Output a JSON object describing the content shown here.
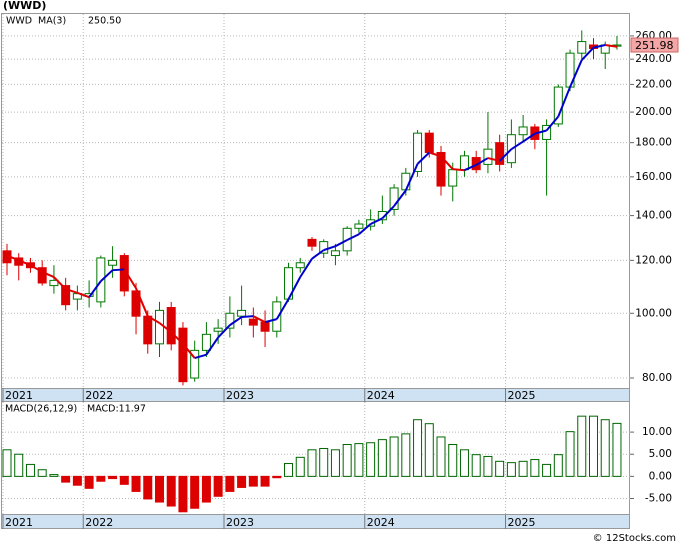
{
  "title": "(WWD)",
  "footer": "© 12Stocks.com",
  "chart_data": [
    {
      "type": "candlestick",
      "categories": [
        null,
        null,
        null,
        null,
        null,
        null,
        null,
        null,
        null,
        null,
        null,
        null,
        null,
        null,
        null,
        null,
        null,
        null,
        null,
        null,
        null,
        null,
        null,
        null,
        null,
        null,
        null,
        null,
        null,
        null,
        null,
        null,
        null,
        null,
        null,
        null,
        null,
        null,
        null,
        null,
        null,
        null,
        null,
        null,
        null,
        null,
        null,
        null,
        null,
        null,
        null,
        null,
        null
      ],
      "series": [
        {
          "name": "WWD",
          "color": "#007700",
          "up_color": "#007700",
          "down_color": "#dd0000",
          "open": [
            124,
            121,
            119,
            117,
            110,
            110,
            105,
            106,
            104,
            118,
            122,
            108,
            99,
            90,
            102,
            95,
            80,
            88,
            94,
            95,
            99,
            98,
            97,
            94,
            105,
            117,
            129,
            123,
            122,
            124,
            134,
            135,
            138,
            143,
            153,
            163,
            186,
            174,
            155,
            164,
            171,
            167,
            180,
            168,
            185,
            190,
            182,
            192,
            218,
            245,
            252,
            245,
            251
          ],
          "high": [
            127,
            123,
            121,
            120,
            118,
            113,
            110,
            112,
            122,
            126,
            123,
            111,
            101,
            104,
            104,
            97,
            91,
            97,
            98,
            106,
            110,
            102,
            101,
            106,
            119,
            121,
            130,
            129,
            127,
            135,
            138,
            143,
            150,
            156,
            165,
            188,
            188,
            178,
            168,
            175,
            175,
            200,
            185,
            195,
            198,
            192,
            195,
            220,
            248,
            265,
            258,
            255,
            260
          ],
          "low": [
            114,
            112,
            115,
            110,
            107,
            101,
            101,
            102,
            102,
            113,
            106,
            93,
            87,
            86,
            88,
            78,
            79,
            86,
            90,
            92,
            96,
            92,
            89,
            92,
            104,
            115,
            124,
            121,
            118,
            122,
            132,
            133,
            136,
            140,
            150,
            160,
            171,
            150,
            147,
            160,
            162,
            162,
            163,
            165,
            180,
            176,
            150,
            190,
            215,
            240,
            240,
            232,
            248
          ],
          "close": [
            119,
            118,
            117,
            111,
            112,
            103,
            107,
            107,
            121,
            120,
            108,
            99,
            90,
            101,
            90,
            79,
            88,
            93,
            95,
            100,
            101,
            96,
            94,
            104,
            117,
            119,
            126,
            128,
            124,
            134,
            136,
            138,
            142,
            154,
            162,
            186,
            174,
            155,
            164,
            172,
            164,
            176,
            167,
            185,
            190,
            182,
            191,
            218,
            245,
            255,
            249,
            252,
            251.98
          ],
          "value_labels": [
            null,
            null,
            null,
            null,
            null,
            null,
            null,
            null,
            null,
            null,
            null,
            null,
            null,
            null,
            null,
            null,
            null,
            null,
            null,
            null,
            null,
            null,
            null,
            null,
            null,
            null,
            null,
            null,
            null,
            null,
            null,
            null,
            null,
            null,
            null,
            null,
            null,
            null,
            null,
            null,
            null,
            null,
            null,
            null,
            null,
            null,
            null,
            null,
            null,
            null,
            null,
            null,
            "251.98"
          ]
        },
        {
          "name": "MA(3)",
          "color": "#0000cc",
          "up_color": "#0000cc",
          "down_color": "#e00000",
          "values": [
            122,
            120,
            118,
            115.3,
            113.3,
            108.7,
            107.3,
            105.7,
            111.7,
            116,
            116.3,
            109,
            99,
            96.7,
            93.7,
            90,
            85.7,
            86.7,
            92,
            96,
            98.7,
            99,
            97,
            98,
            105,
            113.3,
            120.7,
            124.3,
            126,
            128.7,
            131.3,
            136,
            138.7,
            144.7,
            152.7,
            167.3,
            174,
            171.7,
            164.3,
            163.7,
            166.7,
            170.7,
            169,
            176,
            180.7,
            185.7,
            187.7,
            197,
            218,
            239.3,
            249.7,
            252,
            250.5
          ],
          "value_labels": [
            null,
            null,
            null,
            null,
            null,
            null,
            null,
            null,
            null,
            null,
            null,
            null,
            null,
            null,
            null,
            null,
            null,
            null,
            null,
            null,
            null,
            null,
            null,
            null,
            null,
            null,
            null,
            null,
            null,
            null,
            null,
            null,
            null,
            null,
            null,
            null,
            null,
            null,
            null,
            null,
            null,
            null,
            null,
            null,
            null,
            null,
            null,
            null,
            null,
            null,
            null,
            null,
            "250.50"
          ]
        }
      ],
      "log_scale": true,
      "ylim": [
        77.3,
        280.4
      ],
      "yticks": [
        {
          "value": 80,
          "label": "80.00"
        },
        {
          "value": 100,
          "label": "100.00"
        },
        {
          "value": 120,
          "label": "120.00"
        },
        {
          "value": 140,
          "label": "140.00"
        },
        {
          "value": 160,
          "label": "160.00"
        },
        {
          "value": 180,
          "label": "180.00"
        },
        {
          "value": 200,
          "label": "200.00"
        },
        {
          "value": 220,
          "label": "220.00"
        },
        {
          "value": 240,
          "label": "240.00"
        },
        {
          "value": 260,
          "label": "260.00"
        }
      ],
      "xticks": [
        {
          "value": -0.5,
          "label": "2021"
        },
        {
          "value": 6.5,
          "label": "2022"
        },
        {
          "value": 18.5,
          "label": "2023"
        },
        {
          "value": 30.5,
          "label": "2024"
        },
        {
          "value": 42.5,
          "label": "2025"
        }
      ],
      "grid": true
    },
    {
      "type": "bar",
      "categories": [
        null,
        null,
        null,
        null,
        null,
        null,
        null,
        null,
        null,
        null,
        null,
        null,
        null,
        null,
        null,
        null,
        null,
        null,
        null,
        null,
        null,
        null,
        null,
        null,
        null,
        null,
        null,
        null,
        null,
        null,
        null,
        null,
        null,
        null,
        null,
        null,
        null,
        null,
        null,
        null,
        null,
        null,
        null,
        null,
        null,
        null,
        null,
        null,
        null,
        null,
        null,
        null,
        null
      ],
      "series": [
        {
          "name": "MACD(26,12,9)",
          "color": "#006600",
          "up_color": "#006600",
          "down_color": "#dd0000",
          "values": [
            6.0,
            5.0,
            2.7,
            1.5,
            0.4,
            -1.3,
            -2.0,
            -2.7,
            -1.1,
            -0.5,
            -1.8,
            -3.4,
            -5.1,
            -5.8,
            -6.7,
            -8.0,
            -7.2,
            -5.8,
            -4.5,
            -3.4,
            -2.5,
            -2.2,
            -2.2,
            -0.3,
            2.9,
            4.3,
            6.0,
            6.3,
            6.0,
            7.2,
            7.4,
            7.6,
            8.3,
            8.9,
            9.6,
            12.8,
            11.9,
            8.9,
            7.2,
            6.0,
            4.9,
            4.5,
            3.4,
            3.1,
            3.4,
            3.8,
            2.7,
            4.9,
            10.1,
            13.6,
            13.6,
            12.8,
            11.97
          ],
          "value_labels": [
            null,
            null,
            null,
            null,
            null,
            null,
            null,
            null,
            null,
            null,
            null,
            null,
            null,
            null,
            null,
            null,
            null,
            null,
            null,
            null,
            null,
            null,
            null,
            null,
            null,
            null,
            null,
            null,
            null,
            null,
            null,
            null,
            null,
            null,
            null,
            null,
            null,
            null,
            null,
            null,
            null,
            null,
            null,
            null,
            null,
            null,
            null,
            null,
            null,
            null,
            null,
            null,
            "MACD:11.97"
          ]
        }
      ],
      "ylim": [
        -8.5,
        16.8
      ],
      "yticks": [
        {
          "value": -5,
          "label": "-5.00"
        },
        {
          "value": 0,
          "label": "0.00"
        },
        {
          "value": 5,
          "label": "5.00"
        },
        {
          "value": 10,
          "label": "10.00"
        }
      ],
      "xticks": [
        {
          "value": -0.5,
          "label": "2021"
        },
        {
          "value": 6.5,
          "label": "2022"
        },
        {
          "value": 18.5,
          "label": "2023"
        },
        {
          "value": 30.5,
          "label": "2024"
        },
        {
          "value": 42.5,
          "label": "2025"
        }
      ],
      "grid": true
    }
  ]
}
